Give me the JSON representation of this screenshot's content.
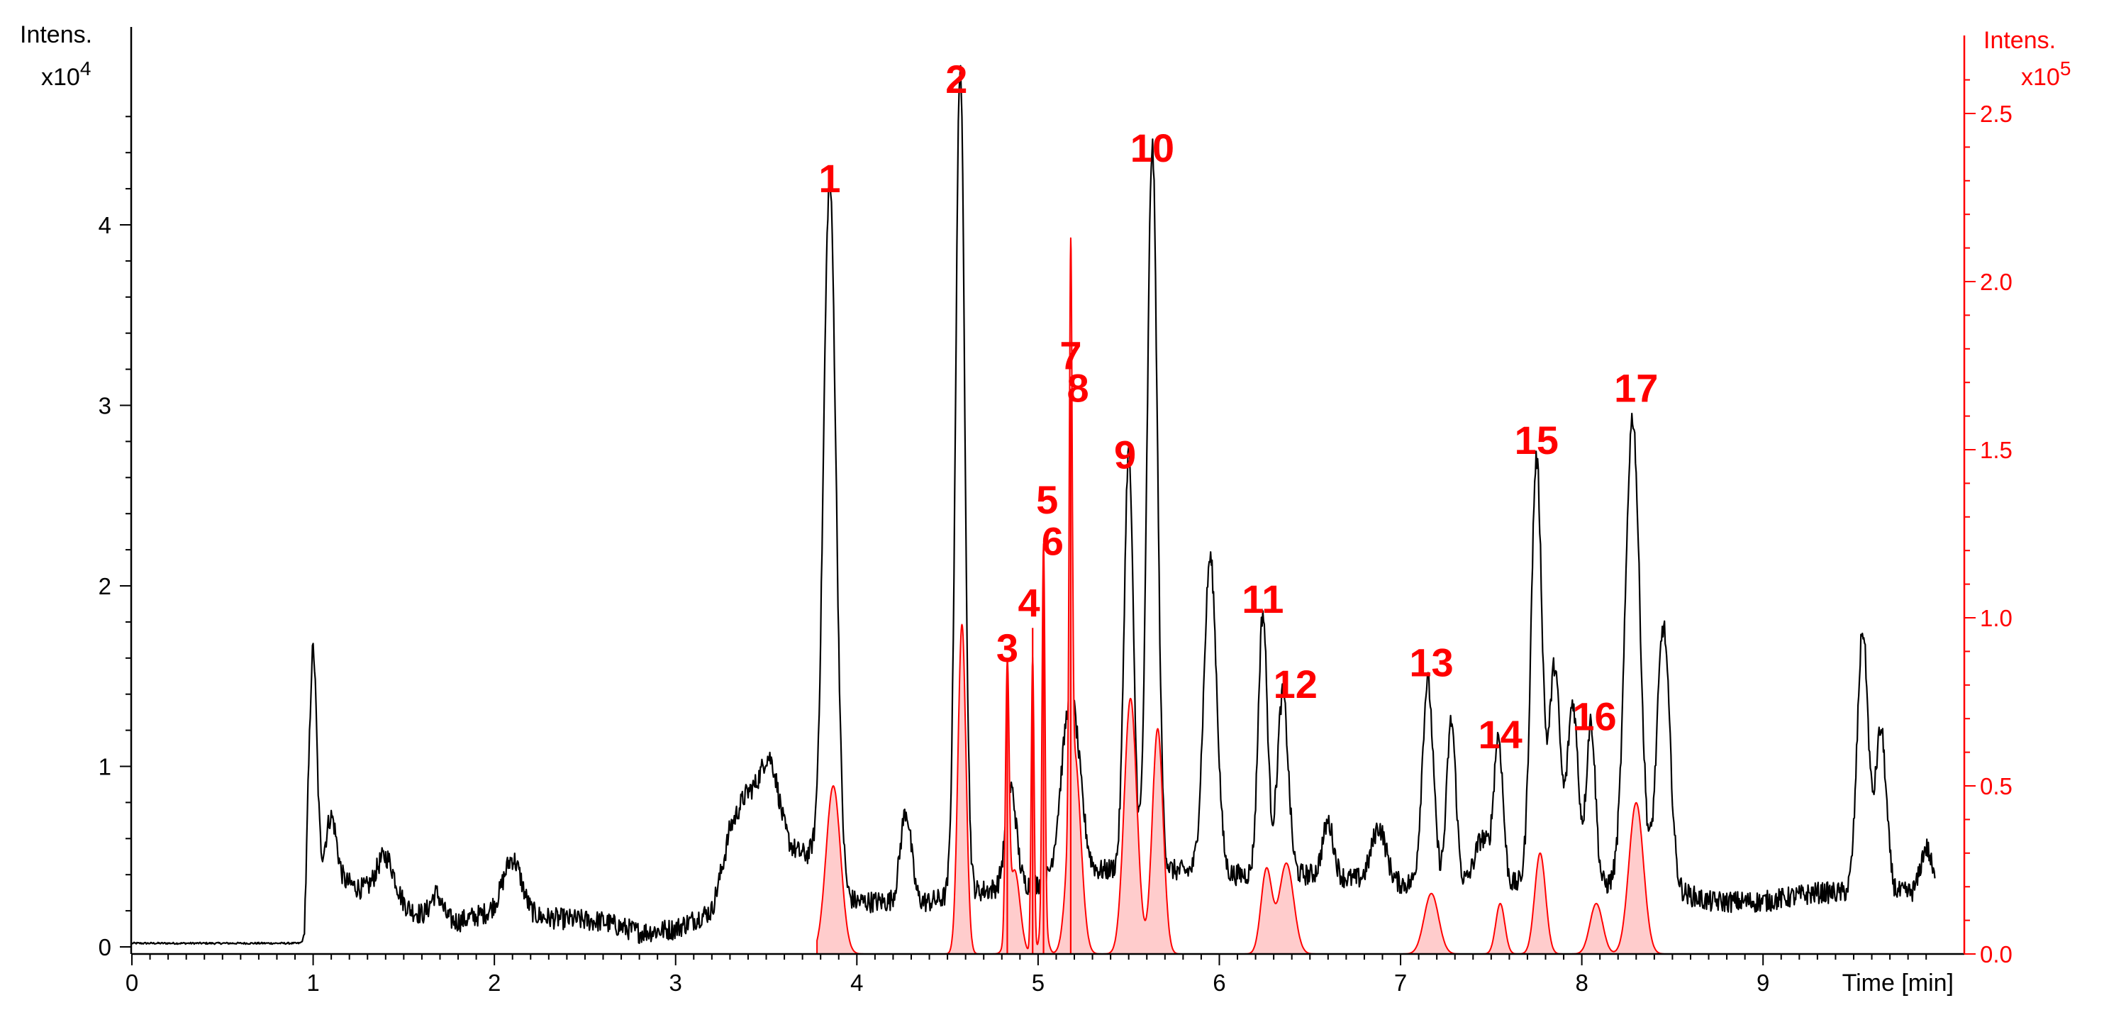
{
  "chart_data": {
    "type": "line",
    "x_label": "Time [min]",
    "y_left_label": "Intens.",
    "y_left_exponent_base": "x10",
    "y_left_exponent": "4",
    "y_right_label": "Intens.",
    "y_right_exponent_base": "x10",
    "y_right_exponent": "5",
    "xlim": [
      0,
      9.95
    ],
    "ylim_left": [
      0,
      4.65
    ],
    "ylim_right": [
      0,
      2.5
    ],
    "x_ticks": [
      "0",
      "1",
      "2",
      "3",
      "4",
      "5",
      "6",
      "7",
      "8",
      "9"
    ],
    "y_left_ticks": [
      "0",
      "1",
      "2",
      "3",
      "4"
    ],
    "y_right_ticks": [
      "0.0",
      "0.5",
      "1.0",
      "1.5",
      "2.0",
      "2.5"
    ],
    "grid": false,
    "colors": {
      "primary": "#000000",
      "secondary": "#ff0000",
      "fill": "#ffcccc"
    },
    "series": [
      {
        "axis": "left",
        "color": "#000000",
        "baseline": [
          [
            0,
            0.02
          ],
          [
            0.95,
            0.02
          ],
          [
            0.97,
            0.4
          ],
          [
            1.2,
            0.35
          ],
          [
            1.4,
            0.25
          ],
          [
            1.6,
            0.18
          ],
          [
            1.8,
            0.14
          ],
          [
            2.0,
            0.2
          ],
          [
            2.3,
            0.16
          ],
          [
            2.6,
            0.14
          ],
          [
            2.8,
            0.08
          ],
          [
            3.0,
            0.1
          ],
          [
            3.2,
            0.2
          ],
          [
            3.3,
            0.6
          ],
          [
            3.6,
            0.55
          ],
          [
            3.75,
            0.5
          ],
          [
            3.8,
            0.3
          ],
          [
            4.0,
            0.25
          ],
          [
            4.4,
            0.25
          ],
          [
            4.6,
            0.3
          ],
          [
            5.0,
            0.35
          ],
          [
            5.5,
            0.45
          ],
          [
            6.0,
            0.4
          ],
          [
            6.5,
            0.4
          ],
          [
            7.0,
            0.35
          ],
          [
            7.5,
            0.35
          ],
          [
            8.0,
            0.35
          ],
          [
            8.5,
            0.32
          ],
          [
            8.7,
            0.25
          ],
          [
            9.0,
            0.25
          ],
          [
            9.3,
            0.3
          ],
          [
            9.6,
            0.3
          ],
          [
            9.95,
            0.3
          ]
        ],
        "peaks": [
          [
            1.0,
            1.25,
            0.02
          ],
          [
            1.1,
            0.35,
            0.03
          ],
          [
            1.4,
            0.25,
            0.05
          ],
          [
            1.68,
            0.13,
            0.03
          ],
          [
            2.1,
            0.3,
            0.05
          ],
          [
            3.4,
            0.25,
            0.06
          ],
          [
            3.52,
            0.45,
            0.05
          ],
          [
            3.85,
            3.95,
            0.035
          ],
          [
            4.27,
            0.5,
            0.03
          ],
          [
            4.57,
            4.6,
            0.025
          ],
          [
            4.85,
            0.55,
            0.03
          ],
          [
            5.18,
            1.0,
            0.05
          ],
          [
            5.5,
            2.3,
            0.025
          ],
          [
            5.63,
            4.0,
            0.028
          ],
          [
            5.95,
            1.75,
            0.035
          ],
          [
            6.24,
            1.45,
            0.025
          ],
          [
            6.35,
            1.0,
            0.03
          ],
          [
            6.6,
            0.3,
            0.03
          ],
          [
            6.88,
            0.3,
            0.04
          ],
          [
            7.15,
            1.12,
            0.03
          ],
          [
            7.28,
            0.9,
            0.025
          ],
          [
            7.45,
            0.25,
            0.04
          ],
          [
            7.54,
            0.8,
            0.025
          ],
          [
            7.75,
            2.35,
            0.03
          ],
          [
            7.85,
            1.2,
            0.03
          ],
          [
            7.95,
            1.0,
            0.03
          ],
          [
            8.05,
            0.9,
            0.025
          ],
          [
            8.28,
            2.6,
            0.04
          ],
          [
            8.45,
            1.45,
            0.035
          ],
          [
            9.55,
            1.45,
            0.03
          ],
          [
            9.65,
            0.9,
            0.03
          ],
          [
            9.9,
            0.25,
            0.03
          ]
        ]
      },
      {
        "axis": "right",
        "color": "#ff0000",
        "peaks": [
          [
            3.87,
            0.5,
            0.04
          ],
          [
            4.58,
            0.98,
            0.022
          ],
          [
            4.83,
            0.77,
            0.01
          ],
          [
            4.87,
            0.25,
            0.03
          ],
          [
            4.97,
            0.88,
            0.008
          ],
          [
            5.03,
            1.12,
            0.008
          ],
          [
            5.03,
            0.1,
            0.02
          ],
          [
            5.18,
            1.62,
            0.008
          ],
          [
            5.2,
            0.6,
            0.035
          ],
          [
            5.51,
            0.76,
            0.035
          ],
          [
            5.66,
            0.67,
            0.03
          ],
          [
            6.26,
            0.25,
            0.03
          ],
          [
            6.37,
            0.27,
            0.04
          ],
          [
            7.17,
            0.18,
            0.04
          ],
          [
            7.55,
            0.15,
            0.025
          ],
          [
            7.77,
            0.3,
            0.03
          ],
          [
            8.08,
            0.15,
            0.035
          ],
          [
            8.3,
            0.45,
            0.04
          ]
        ]
      }
    ],
    "annotations": [
      {
        "label": "1",
        "x": 3.85,
        "y_left": 4.18
      },
      {
        "label": "2",
        "x": 4.55,
        "y_left": 4.73
      },
      {
        "label": "3",
        "x": 4.83,
        "y_left": 1.58
      },
      {
        "label": "4",
        "x": 4.95,
        "y_left": 1.83
      },
      {
        "label": "5",
        "x": 5.05,
        "y_left": 2.4
      },
      {
        "label": "6",
        "x": 5.08,
        "y_left": 2.17
      },
      {
        "label": "7",
        "x": 5.18,
        "y_left": 3.2
      },
      {
        "label": "8",
        "x": 5.22,
        "y_left": 3.02
      },
      {
        "label": "9",
        "x": 5.48,
        "y_left": 2.65
      },
      {
        "label": "10",
        "x": 5.63,
        "y_left": 4.35
      },
      {
        "label": "11",
        "x": 6.24,
        "y_left": 1.85
      },
      {
        "label": "12",
        "x": 6.42,
        "y_left": 1.38
      },
      {
        "label": "13",
        "x": 7.17,
        "y_left": 1.5
      },
      {
        "label": "14",
        "x": 7.55,
        "y_left": 1.1
      },
      {
        "label": "15",
        "x": 7.75,
        "y_left": 2.73
      },
      {
        "label": "16",
        "x": 8.07,
        "y_left": 1.2
      },
      {
        "label": "17",
        "x": 8.3,
        "y_left": 3.02
      }
    ],
    "marker_lines": [
      {
        "x": 4.83,
        "y_right": 0.85
      },
      {
        "x": 4.97,
        "y_right": 0.97
      },
      {
        "x": 5.03,
        "y_right": 1.2
      },
      {
        "x": 5.18,
        "y_right": 1.65
      }
    ]
  }
}
